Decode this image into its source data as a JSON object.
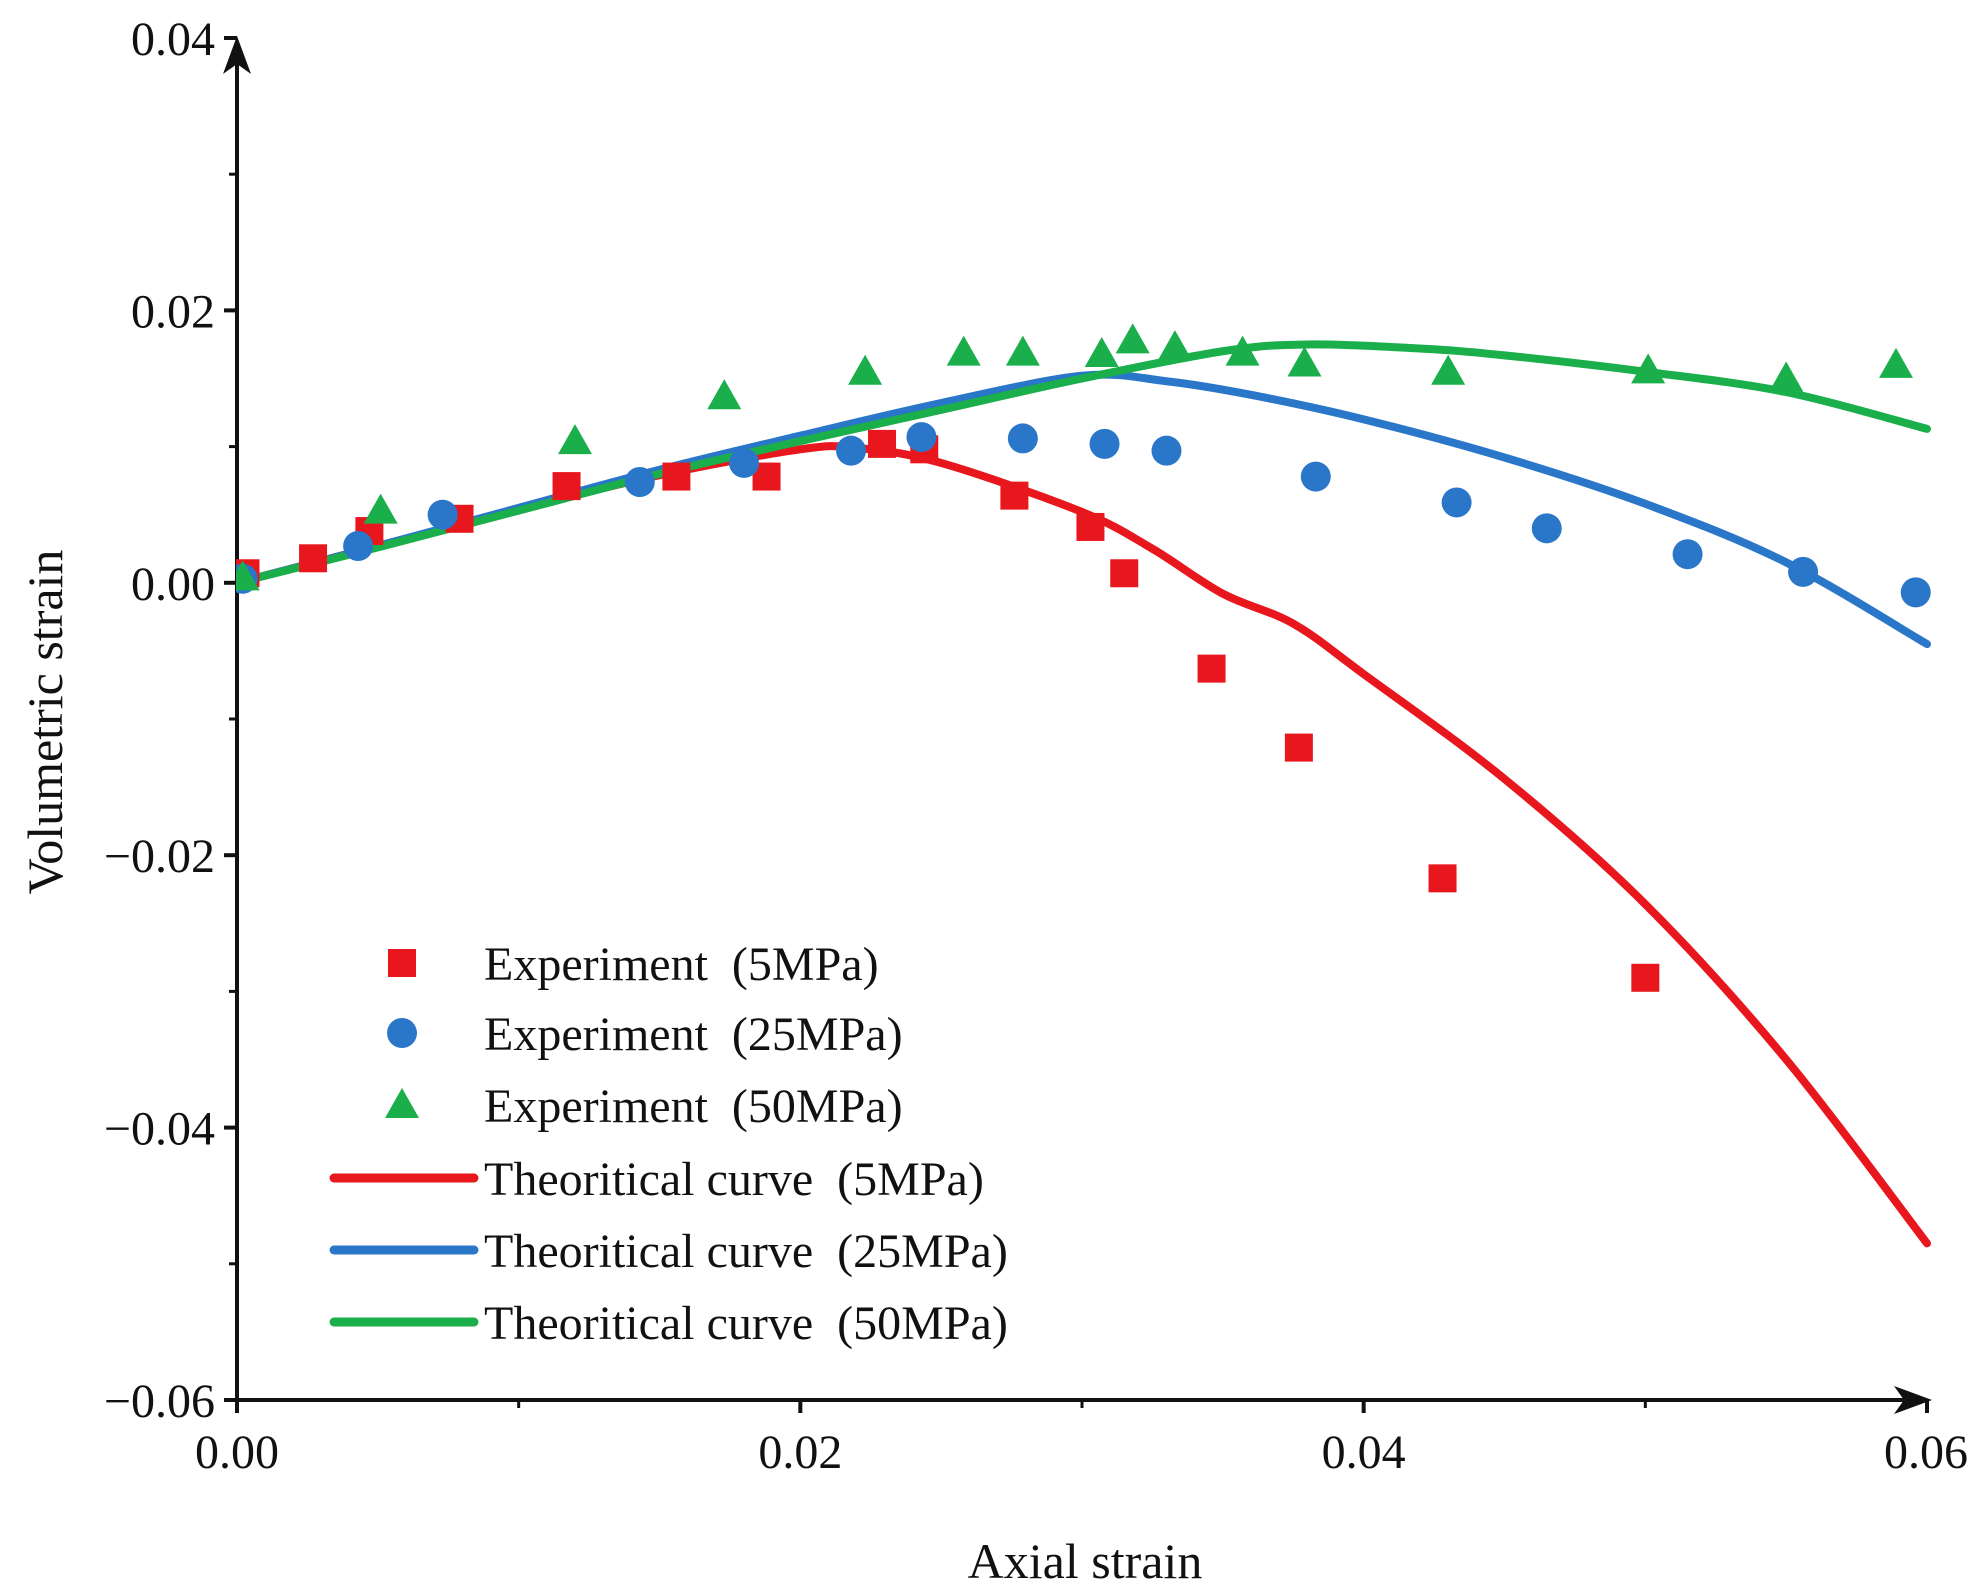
{
  "chart_data": {
    "type": "scatter",
    "title": "",
    "xlabel": "Axial strain",
    "ylabel": "Volumetric strain",
    "xlim": [
      0,
      0.06
    ],
    "ylim": [
      -0.06,
      0.04
    ],
    "x_ticks": [
      0,
      0.02,
      0.04,
      0.06
    ],
    "x_tick_labels": [
      "0.00",
      "0.02",
      "0.04",
      "0.06"
    ],
    "y_ticks": [
      -0.06,
      -0.04,
      -0.02,
      0,
      0.02,
      0.04
    ],
    "y_tick_labels": [
      "−0.06",
      "−0.04",
      "−0.02",
      "0.00",
      "0.02",
      "0.04"
    ],
    "legend_position": "bottom-left",
    "grid": false,
    "colors": {
      "red": "#e8171e",
      "blue": "#2a77c9",
      "green": "#1aaf4b"
    },
    "series": [
      {
        "name": "Experiment  (5MPa)",
        "kind": "scatter",
        "marker": "square",
        "color": "#e8171e",
        "points": [
          [
            0.0003,
            0.0007
          ],
          [
            0.0027,
            0.0018
          ],
          [
            0.0047,
            0.0038
          ],
          [
            0.0079,
            0.0047
          ],
          [
            0.0117,
            0.0071
          ],
          [
            0.0156,
            0.0078
          ],
          [
            0.0188,
            0.0078
          ],
          [
            0.0229,
            0.0102
          ],
          [
            0.0244,
            0.0098
          ],
          [
            0.0276,
            0.0064
          ],
          [
            0.0303,
            0.0041
          ],
          [
            0.0315,
            0.0007
          ],
          [
            0.0346,
            -0.0063
          ],
          [
            0.0377,
            -0.0121
          ],
          [
            0.0428,
            -0.0217
          ],
          [
            0.05,
            -0.029
          ]
        ]
      },
      {
        "name": "Experiment  (25MPa)",
        "kind": "scatter",
        "marker": "circle",
        "color": "#2a77c9",
        "points": [
          [
            0.0002,
            0.0003
          ],
          [
            0.0043,
            0.0027
          ],
          [
            0.0073,
            0.005
          ],
          [
            0.0143,
            0.0074
          ],
          [
            0.018,
            0.0088
          ],
          [
            0.0218,
            0.0097
          ],
          [
            0.0243,
            0.0107
          ],
          [
            0.0279,
            0.0106
          ],
          [
            0.0308,
            0.0102
          ],
          [
            0.033,
            0.0097
          ],
          [
            0.0383,
            0.0078
          ],
          [
            0.0433,
            0.0059
          ],
          [
            0.0465,
            0.004
          ],
          [
            0.0515,
            0.0021
          ],
          [
            0.0556,
            0.0008
          ],
          [
            0.0596,
            -0.0007
          ]
        ]
      },
      {
        "name": "Experiment  (50MPa)",
        "kind": "scatter",
        "marker": "triangle",
        "color": "#1aaf4b",
        "points": [
          [
            0.0002,
            0.0004
          ],
          [
            0.0051,
            0.0053
          ],
          [
            0.012,
            0.0104
          ],
          [
            0.0173,
            0.0137
          ],
          [
            0.0223,
            0.0155
          ],
          [
            0.0258,
            0.0169
          ],
          [
            0.0279,
            0.0169
          ],
          [
            0.0307,
            0.0168
          ],
          [
            0.0318,
            0.0178
          ],
          [
            0.0333,
            0.0173
          ],
          [
            0.0357,
            0.0169
          ],
          [
            0.0379,
            0.0161
          ],
          [
            0.043,
            0.0155
          ],
          [
            0.0501,
            0.0156
          ],
          [
            0.055,
            0.015
          ],
          [
            0.0589,
            0.016
          ]
        ]
      },
      {
        "name": "Theoritical curve  (5MPa)",
        "kind": "line",
        "color": "#e8171e",
        "points": [
          [
            0.0,
            0.0
          ],
          [
            0.005,
            0.0027
          ],
          [
            0.01,
            0.0054
          ],
          [
            0.015,
            0.0079
          ],
          [
            0.02,
            0.0098
          ],
          [
            0.022,
            0.0099
          ],
          [
            0.025,
            0.0088
          ],
          [
            0.03,
            0.0052
          ],
          [
            0.0325,
            0.0025
          ],
          [
            0.035,
            -0.0008
          ],
          [
            0.0375,
            -0.003
          ],
          [
            0.04,
            -0.0067
          ],
          [
            0.045,
            -0.0144
          ],
          [
            0.05,
            -0.0236
          ],
          [
            0.055,
            -0.035
          ],
          [
            0.06,
            -0.0485
          ]
        ]
      },
      {
        "name": "Theoritical curve  (25MPa)",
        "kind": "line",
        "color": "#2a77c9",
        "points": [
          [
            0.0,
            0.0
          ],
          [
            0.005,
            0.0027
          ],
          [
            0.01,
            0.0055
          ],
          [
            0.015,
            0.0083
          ],
          [
            0.02,
            0.0108
          ],
          [
            0.025,
            0.0132
          ],
          [
            0.03,
            0.0152
          ],
          [
            0.033,
            0.0148
          ],
          [
            0.036,
            0.0138
          ],
          [
            0.04,
            0.012
          ],
          [
            0.045,
            0.0092
          ],
          [
            0.05,
            0.0058
          ],
          [
            0.055,
            0.0015
          ],
          [
            0.06,
            -0.0045
          ]
        ]
      },
      {
        "name": "Theoritical curve  (50MPa)",
        "kind": "line",
        "color": "#1aaf4b",
        "points": [
          [
            0.0,
            0.0
          ],
          [
            0.005,
            0.0026
          ],
          [
            0.01,
            0.0053
          ],
          [
            0.015,
            0.008
          ],
          [
            0.02,
            0.0104
          ],
          [
            0.025,
            0.0127
          ],
          [
            0.03,
            0.015
          ],
          [
            0.035,
            0.017
          ],
          [
            0.038,
            0.0175
          ],
          [
            0.042,
            0.0172
          ],
          [
            0.045,
            0.0167
          ],
          [
            0.05,
            0.0155
          ],
          [
            0.055,
            0.014
          ],
          [
            0.06,
            0.0113
          ]
        ]
      }
    ]
  }
}
